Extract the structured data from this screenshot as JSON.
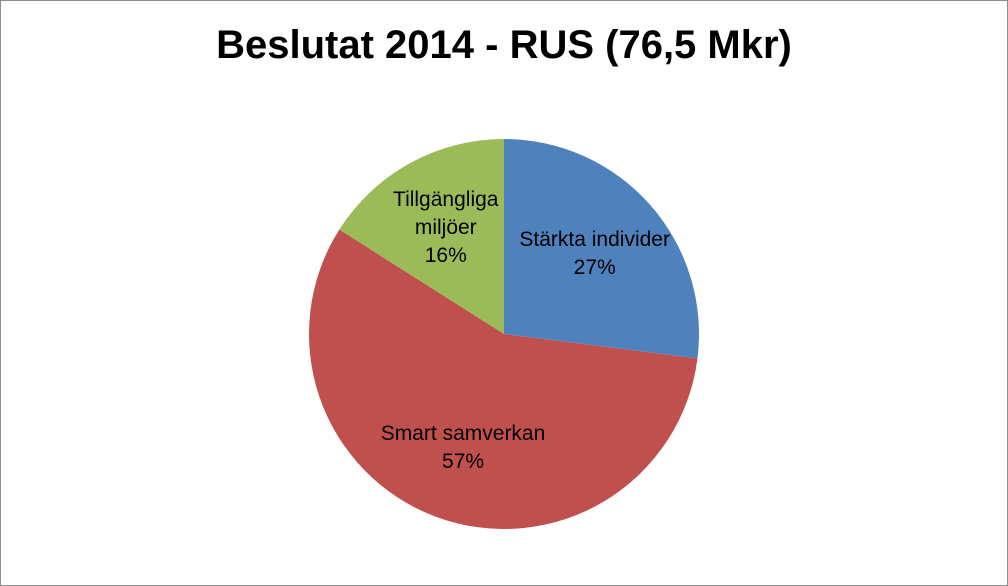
{
  "chart_data": {
    "type": "pie",
    "title": "Beslutat 2014 - RUS (76,5 Mkr)",
    "categories": [
      "Stärkta individer",
      "Smart samverkan",
      "Tillgängliga miljöer"
    ],
    "values": [
      27,
      57,
      16
    ],
    "value_labels": [
      "27%",
      "57%",
      "16%"
    ],
    "colors": [
      "#4f81bd",
      "#c0504d",
      "#9bbb59"
    ]
  }
}
